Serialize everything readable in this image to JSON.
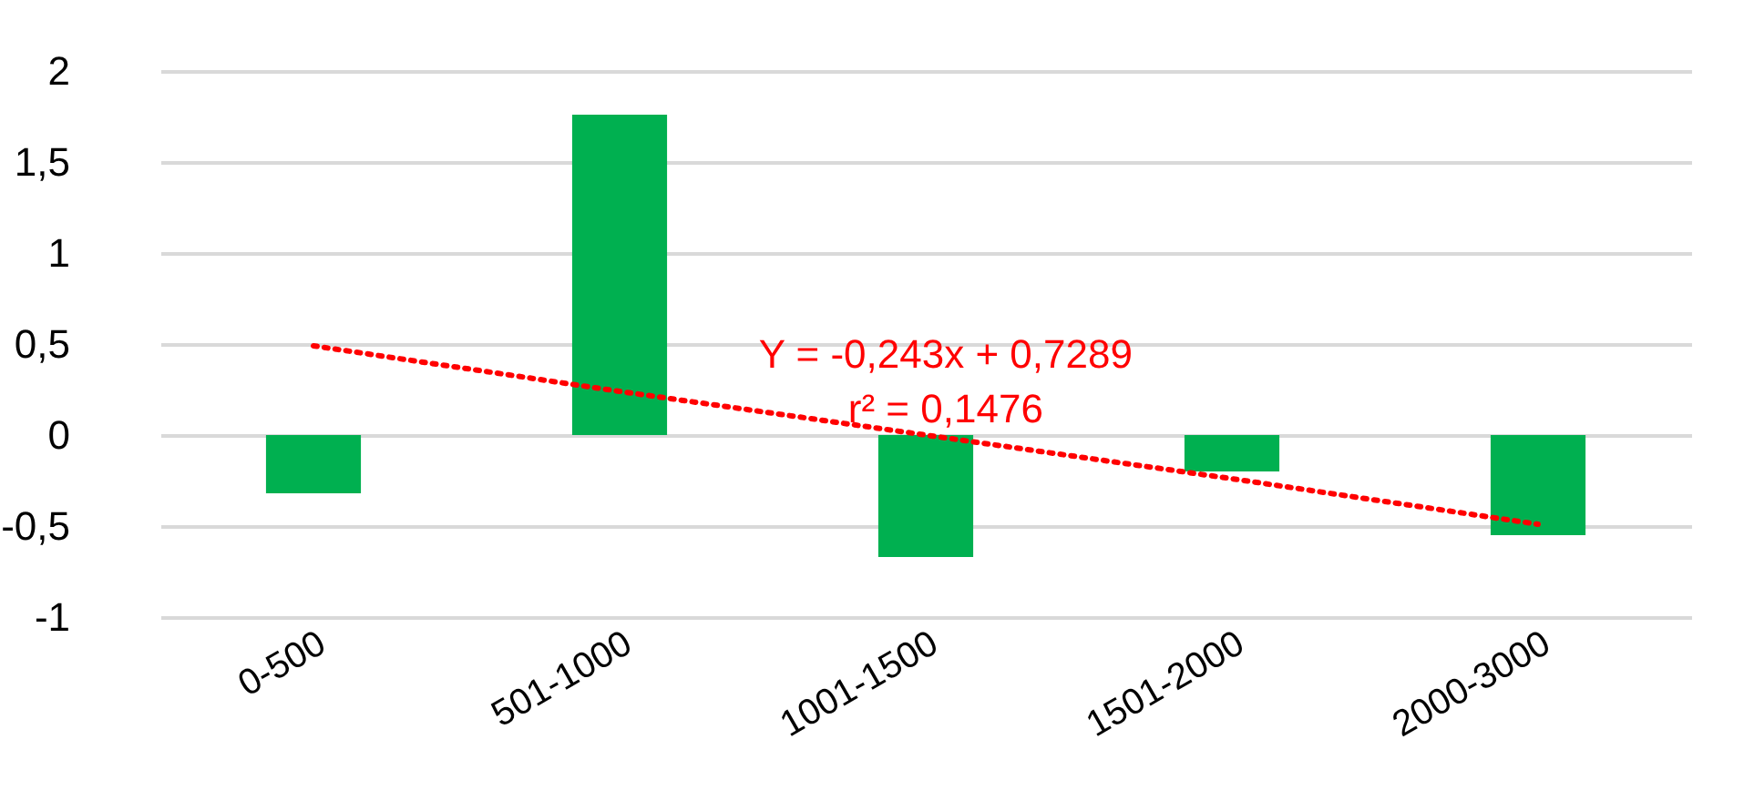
{
  "chart_data": {
    "type": "bar",
    "categories": [
      "0-500",
      "501-1000",
      "1001-1500",
      "1501-2000",
      "2000-3000"
    ],
    "series": [
      {
        "color": "#00b050",
        "values": [
          -0.32,
          1.76,
          -0.67,
          -0.2,
          -0.55
        ]
      },
      {
        "type": "line",
        "color": "#ff0000",
        "line_style": "dotted",
        "marker": "none",
        "x": [
          "0-500",
          "501-1000",
          "1001-1500",
          "1501-2000",
          "2000-3000"
        ],
        "values": [
          0.49,
          0.24,
          0.0,
          -0.24,
          -0.49
        ]
      }
    ],
    "annotations": [
      "Y = -0,243x + 0,7289",
      "r² = 0,1476"
    ],
    "ylim": [
      -1,
      2
    ],
    "yticks": [
      {
        "value": -1,
        "label": "-1"
      },
      {
        "value": -0.5,
        "label": "-0,5"
      },
      {
        "value": 0,
        "label": "0"
      },
      {
        "value": 0.5,
        "label": "0,5"
      },
      {
        "value": 1,
        "label": "1"
      },
      {
        "value": 1.5,
        "label": "1,5"
      },
      {
        "value": 2,
        "label": "2"
      }
    ],
    "grid": "y"
  }
}
